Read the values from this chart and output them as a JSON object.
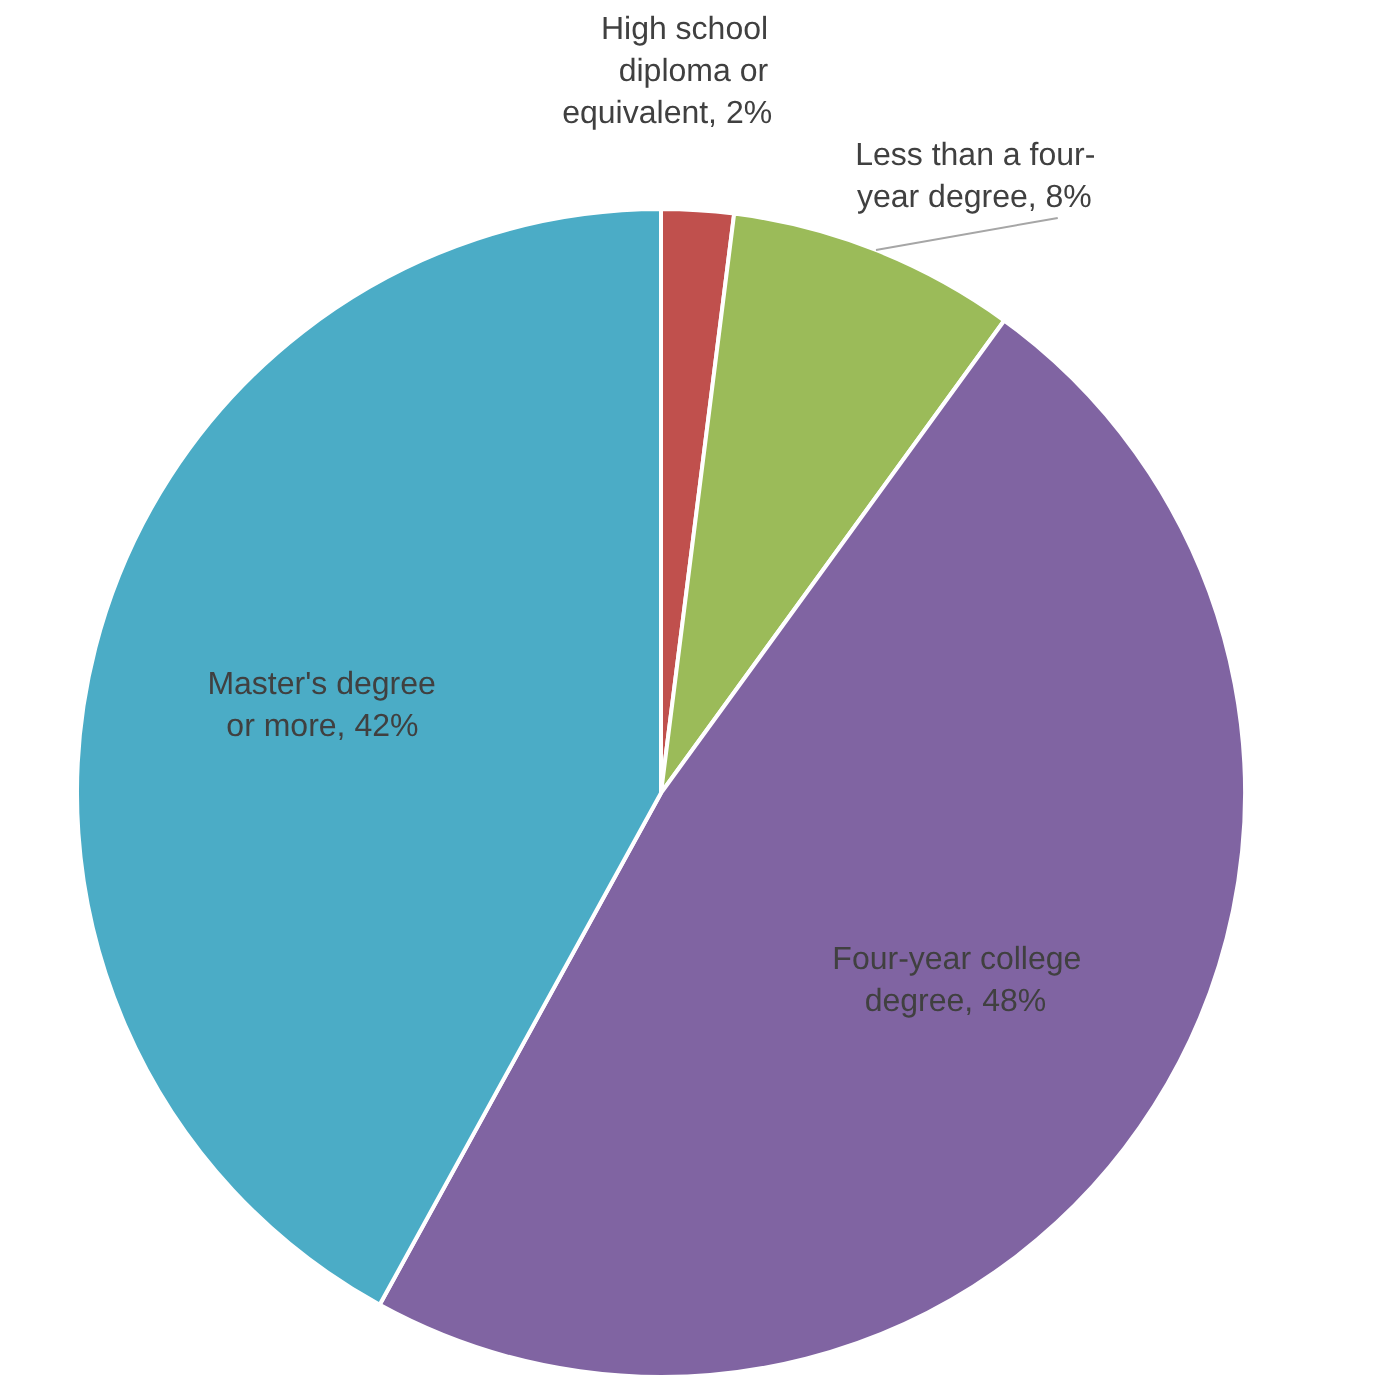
{
  "chart_data": {
    "type": "pie",
    "categories": [
      "High school diploma or equivalent",
      "Less than a four-year degree",
      "Four-year college degree",
      "Master's degree or more"
    ],
    "values": [
      2,
      8,
      48,
      42
    ],
    "colors": [
      "#c0504d",
      "#9bbb59",
      "#8064a2",
      "#4bacc6"
    ],
    "value_labels": [
      ", 2%",
      ", 8%",
      ", 48%",
      ", 42%"
    ]
  }
}
